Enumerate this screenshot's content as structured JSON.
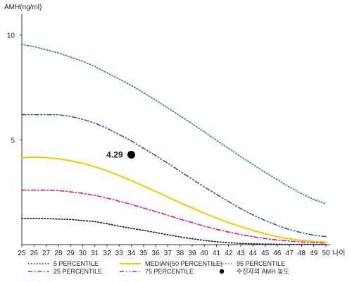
{
  "chart_data": {
    "type": "line",
    "ylabel": "AMH(ng/ml)",
    "xlabel": "나이",
    "xlim": [
      25,
      50
    ],
    "ylim": [
      0,
      11
    ],
    "x_ticks": [
      25,
      26,
      27,
      28,
      29,
      30,
      31,
      32,
      33,
      34,
      35,
      36,
      37,
      38,
      39,
      40,
      41,
      42,
      43,
      44,
      45,
      46,
      47,
      48,
      49,
      50
    ],
    "y_ticks": [
      5,
      10
    ],
    "x": [
      25,
      26,
      27,
      28,
      29,
      30,
      31,
      32,
      33,
      34,
      35,
      36,
      37,
      38,
      39,
      40,
      41,
      42,
      43,
      44,
      45,
      46,
      47,
      48,
      49,
      50
    ],
    "series": [
      {
        "name": "5 PERCENTILE",
        "color": "#111133",
        "dash": "dotted",
        "values": [
          1.25,
          1.25,
          1.25,
          1.22,
          1.2,
          1.15,
          1.1,
          1.0,
          0.88,
          0.78,
          0.68,
          0.58,
          0.47,
          0.37,
          0.28,
          0.2,
          0.14,
          0.09,
          0.06,
          0.04,
          0.03,
          0.02,
          0.01,
          0.01,
          0.01,
          0.01
        ]
      },
      {
        "name": "25 PERCENTILE",
        "color": "#e0197e",
        "dash": "dashdot",
        "values": [
          2.6,
          2.6,
          2.6,
          2.58,
          2.52,
          2.45,
          2.35,
          2.22,
          2.07,
          1.92,
          1.75,
          1.58,
          1.4,
          1.22,
          1.05,
          0.88,
          0.73,
          0.6,
          0.48,
          0.38,
          0.29,
          0.22,
          0.17,
          0.13,
          0.1,
          0.08
        ]
      },
      {
        "name": "MEDIAN(50 PERCENTILE)",
        "color": "#f2c800",
        "dash": "solid",
        "values": [
          4.15,
          4.17,
          4.15,
          4.1,
          4.0,
          3.88,
          3.72,
          3.52,
          3.3,
          3.06,
          2.8,
          2.54,
          2.27,
          2.0,
          1.75,
          1.5,
          1.27,
          1.05,
          0.86,
          0.68,
          0.52,
          0.38,
          0.28,
          0.2,
          0.15,
          0.12
        ]
      },
      {
        "name": "75 PERCENTILE",
        "color": "#3355bb",
        "dash": "dashdotdot",
        "values": [
          6.2,
          6.2,
          6.2,
          6.2,
          6.12,
          5.98,
          5.8,
          5.55,
          5.25,
          4.95,
          4.6,
          4.25,
          3.88,
          3.5,
          3.13,
          2.75,
          2.4,
          2.05,
          1.72,
          1.42,
          1.15,
          0.92,
          0.72,
          0.57,
          0.45,
          0.38
        ]
      },
      {
        "name": "95 PERCENTILE",
        "color": "#2e8b57",
        "dash": "dotted",
        "values": [
          9.55,
          9.45,
          9.3,
          9.15,
          8.95,
          8.75,
          8.5,
          8.2,
          7.9,
          7.6,
          7.25,
          6.9,
          6.52,
          6.15,
          5.77,
          5.38,
          4.98,
          4.6,
          4.2,
          3.82,
          3.45,
          3.1,
          2.75,
          2.43,
          2.15,
          1.95
        ]
      }
    ],
    "marker": {
      "name": "수진자의 AMH 농도",
      "x": 34,
      "y": 4.29,
      "label": "4.29",
      "color": "#000000"
    },
    "legend": [
      {
        "label": "5 PERCENTILE",
        "series": 0
      },
      {
        "label": "25 PERCENTILE",
        "series": 1
      },
      {
        "label": "MEDIAN(50 PERCENTILE)",
        "series": 2
      },
      {
        "label": "75 PERCENTILE",
        "series": 3
      },
      {
        "label": "95 PERCENTILE",
        "series": 4
      },
      {
        "label": "수진자의 AMH 농도",
        "marker": true
      }
    ],
    "grid": false,
    "legend_position": "bottom"
  }
}
